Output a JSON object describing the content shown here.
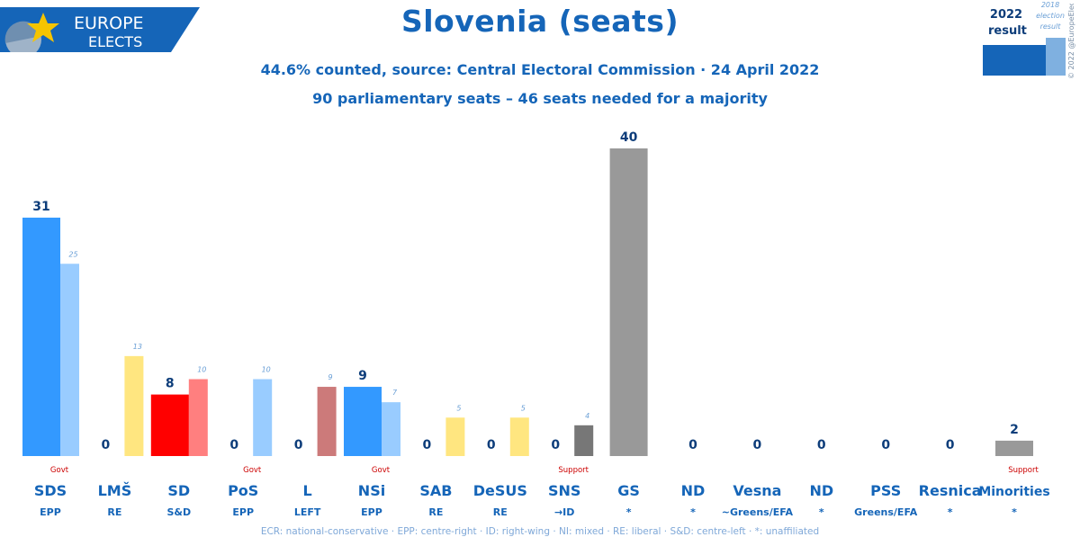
{
  "logo": {
    "line1": "EUROPE",
    "line2": "ELECTS"
  },
  "chart_data": {
    "type": "bar",
    "title": "Slovenia (seats)",
    "subtitle": "44.6% counted, source: Central Electoral Commission · 24 April 2022",
    "subtitle2": "90 parliamentary seats – 46 seats needed for a majority",
    "legend": {
      "current": "2022\nresult",
      "previous": "2018\nelection\nresult"
    },
    "categories": [
      "SDS",
      "LMŠ",
      "SD",
      "PoS",
      "L",
      "NSi",
      "SAB",
      "DeSUS",
      "SNS",
      "GS",
      "ND",
      "Vesna",
      "ND",
      "PSS",
      "Resnica",
      "Minorities"
    ],
    "groups": [
      "EPP",
      "RE",
      "S&D",
      "EPP",
      "LEFT",
      "EPP",
      "RE",
      "RE",
      "→ID",
      "*",
      "*",
      "~Greens/EFA",
      "*",
      "Greens/EFA",
      "*",
      "*"
    ],
    "status": [
      "Govt",
      "",
      "",
      "Govt",
      "",
      "Govt",
      "",
      "",
      "Support",
      "",
      "",
      "",
      "",
      "",
      "",
      "Support"
    ],
    "series": [
      {
        "name": "2022 result",
        "values": [
          31,
          0,
          8,
          0,
          0,
          9,
          0,
          0,
          0,
          40,
          0,
          0,
          0,
          0,
          0,
          2
        ]
      },
      {
        "name": "2018 election result",
        "values": [
          25,
          13,
          10,
          10,
          9,
          7,
          5,
          5,
          4,
          null,
          null,
          null,
          null,
          null,
          null,
          null
        ]
      }
    ],
    "colors_current": [
      "#3399ff",
      "#ffe680",
      "#ff0000",
      "#99ccff",
      "#cc7a7a",
      "#3399ff",
      "#ffe680",
      "#ffe680",
      "#777777",
      "#999999",
      "#999999",
      "#999999",
      "#999999",
      "#999999",
      "#999999",
      "#999999"
    ],
    "colors_previous": [
      "#99ccff",
      "#ffe680",
      "#ff7f7f",
      "#99ccff",
      "#cc7a7a",
      "#99ccff",
      "#ffe680",
      "#ffe680",
      "#777777",
      "#999999",
      "#999999",
      "#999999",
      "#999999",
      "#999999",
      "#999999",
      "#999999"
    ],
    "ylim": [
      0,
      40
    ]
  },
  "footnote": "ECR: national-conservative · EPP: centre-right · ID: right-wing · NI: mixed · RE: liberal · S&D: centre-left · *: unaffiliated",
  "copyright": "© 2022 @EuropeElects"
}
